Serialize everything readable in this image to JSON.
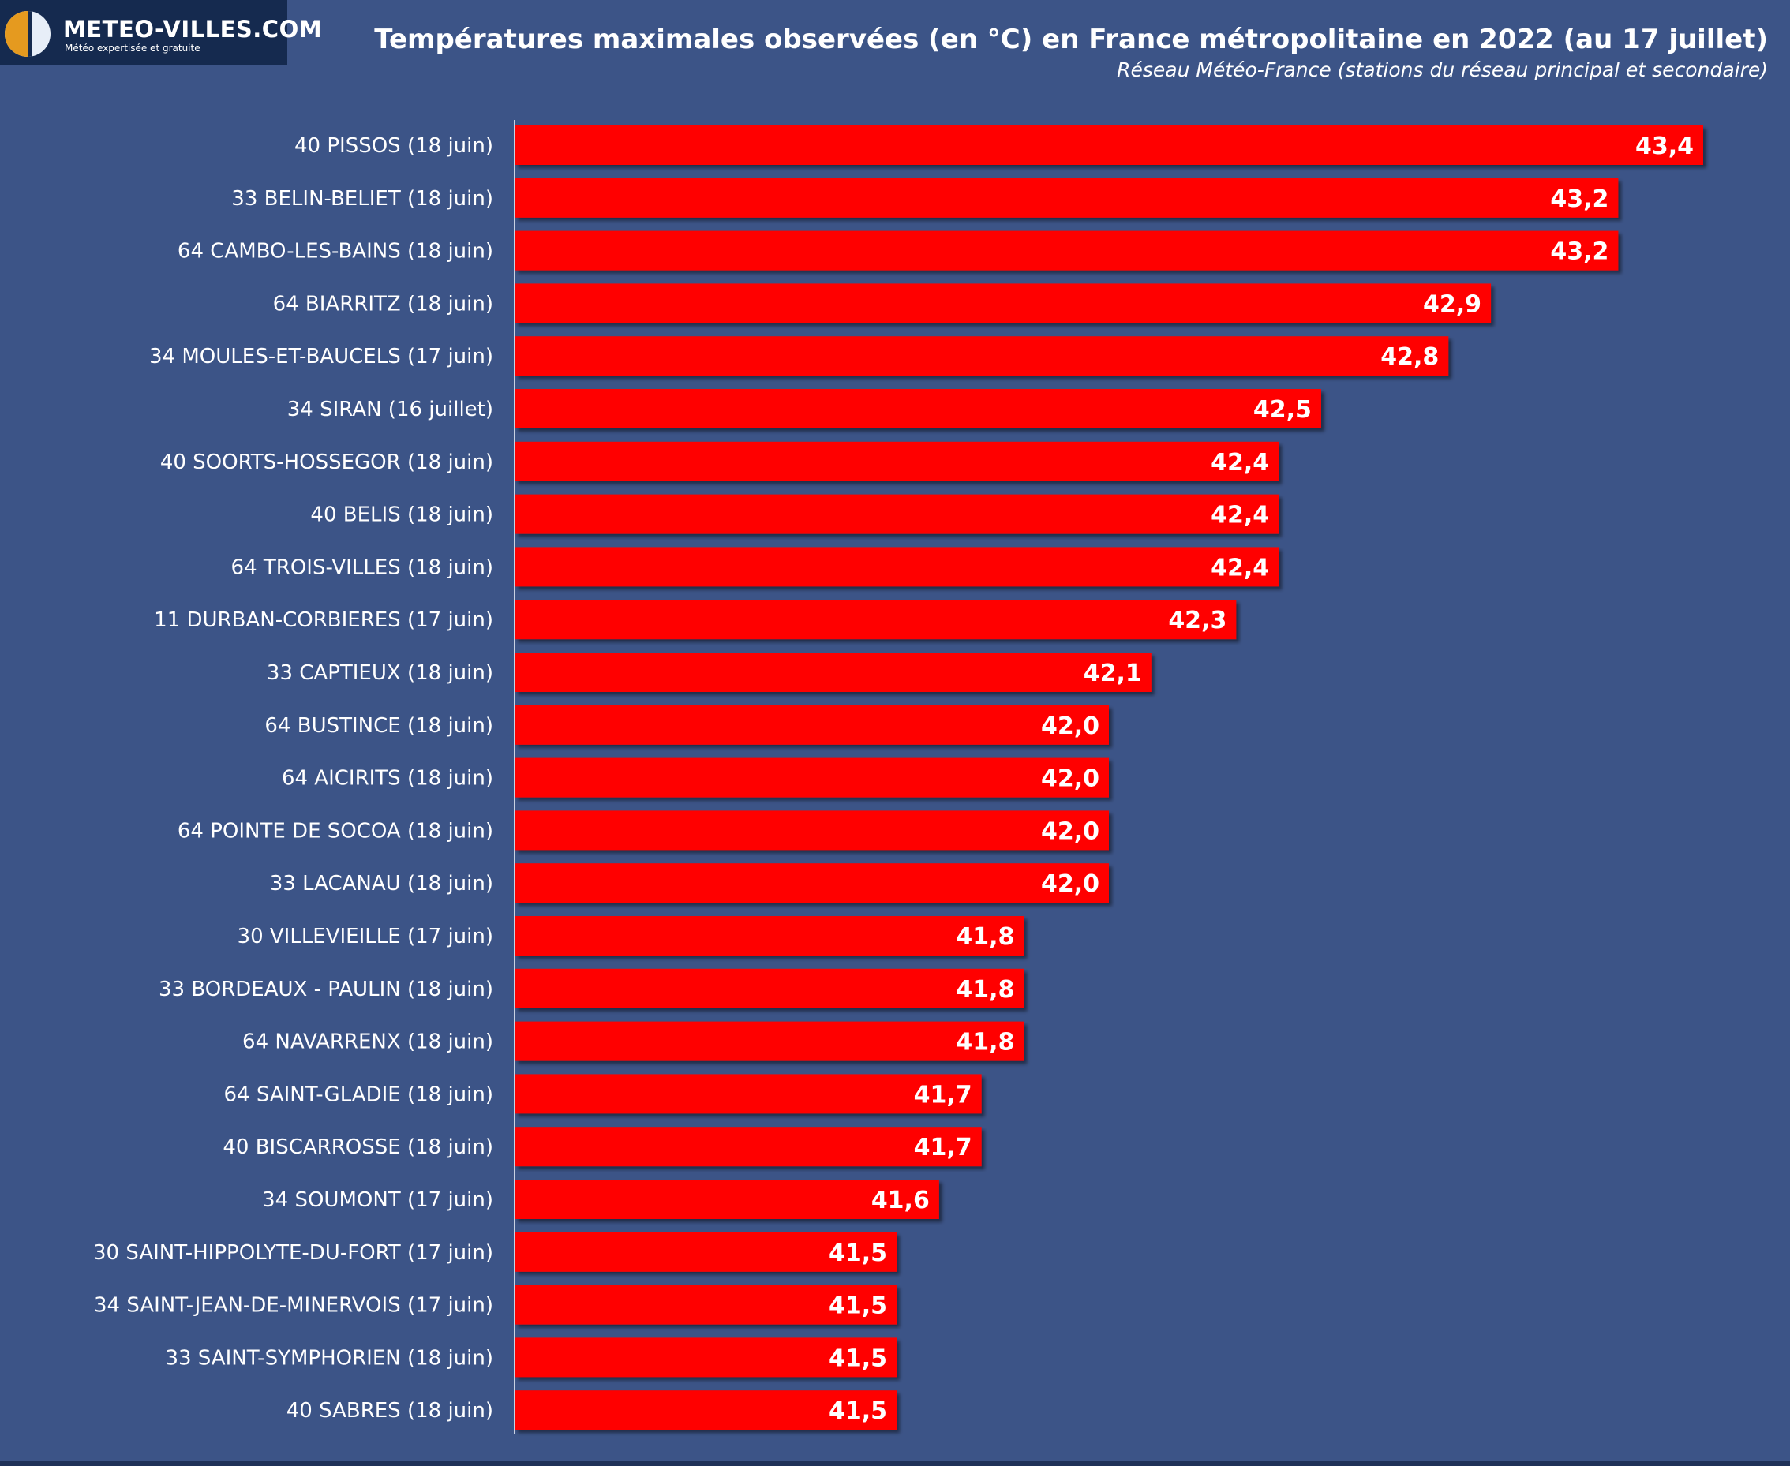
{
  "brand": {
    "name": "METEO-VILLES.COM",
    "tagline": "Météo expertisée et gratuite",
    "colors": {
      "logo_bg": "#152a4f",
      "logo_accent": "#e59a1f"
    }
  },
  "colors": {
    "background": "#3c5487",
    "bar": "#ff0000",
    "text": "#ffffff"
  },
  "chart_data": {
    "type": "bar",
    "orientation": "horizontal",
    "title": "Températures maximales observées (en °C) en France métropolitaine en 2022 (au 17 juillet)",
    "subtitle": "Réseau Météo-France (stations du réseau principal et secondaire)",
    "xlabel": "",
    "ylabel": "",
    "grid": false,
    "legend": "none",
    "xlim": [
      40.6,
      43.4
    ],
    "categories": [
      "40 PISSOS (18 juin)",
      "33 BELIN-BELIET (18 juin)",
      "64 CAMBO-LES-BAINS (18 juin)",
      "64 BIARRITZ (18 juin)",
      "34 MOULES-ET-BAUCELS (17 juin)",
      "34 SIRAN (16 juillet)",
      "40 SOORTS-HOSSEGOR (18 juin)",
      "40 BELIS (18 juin)",
      "64 TROIS-VILLES (18 juin)",
      "11 DURBAN-CORBIERES (17 juin)",
      "33 CAPTIEUX (18 juin)",
      "64 BUSTINCE (18 juin)",
      "64 AICIRITS (18 juin)",
      "64 POINTE DE SOCOA (18 juin)",
      "33 LACANAU (18 juin)",
      "30 VILLEVIEILLE (17 juin)",
      "33 BORDEAUX - PAULIN (18 juin)",
      "64 NAVARRENX (18 juin)",
      "64 SAINT-GLADIE (18 juin)",
      "40 BISCARROSSE (18 juin)",
      "34 SOUMONT (17 juin)",
      "30 SAINT-HIPPOLYTE-DU-FORT (17 juin)",
      "34 SAINT-JEAN-DE-MINERVOIS (17 juin)",
      "33 SAINT-SYMPHORIEN (18 juin)",
      "40 SABRES (18 juin)"
    ],
    "values": [
      43.4,
      43.2,
      43.2,
      42.9,
      42.8,
      42.5,
      42.4,
      42.4,
      42.4,
      42.3,
      42.1,
      42.0,
      42.0,
      42.0,
      42.0,
      41.8,
      41.8,
      41.8,
      41.7,
      41.7,
      41.6,
      41.5,
      41.5,
      41.5,
      41.5
    ],
    "value_labels": [
      "43,4",
      "43,2",
      "43,2",
      "42,9",
      "42,8",
      "42,5",
      "42,4",
      "42,4",
      "42,4",
      "42,3",
      "42,1",
      "42,0",
      "42,0",
      "42,0",
      "42,0",
      "41,8",
      "41,8",
      "41,8",
      "41,7",
      "41,7",
      "41,6",
      "41,5",
      "41,5",
      "41,5",
      "41,5"
    ]
  }
}
